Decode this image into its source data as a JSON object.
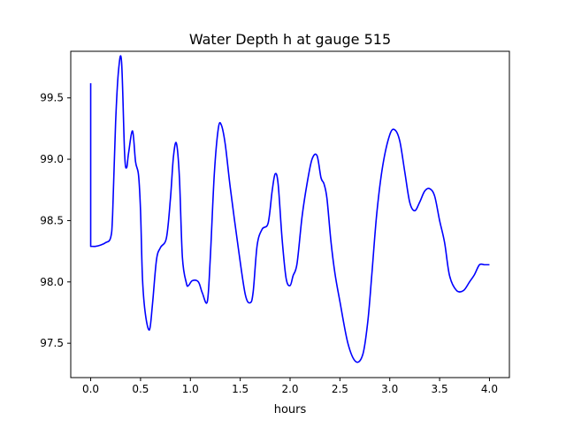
{
  "chart_data": {
    "type": "line",
    "title": "Water Depth h at gauge 515",
    "xlabel": "hours",
    "ylabel": "",
    "xlim": [
      -0.2,
      4.2
    ],
    "ylim": [
      97.22,
      99.88
    ],
    "xticks": [
      0.0,
      0.5,
      1.0,
      1.5,
      2.0,
      2.5,
      3.0,
      3.5,
      4.0
    ],
    "xtick_labels": [
      "0.0",
      "0.5",
      "1.0",
      "1.5",
      "2.0",
      "2.5",
      "3.0",
      "3.5",
      "4.0"
    ],
    "yticks": [
      97.5,
      98.0,
      98.5,
      99.0,
      99.5
    ],
    "ytick_labels": [
      "97.5",
      "98.0",
      "98.5",
      "99.0",
      "99.5"
    ],
    "grid": false,
    "series": [
      {
        "color": "#0000ff",
        "x": [
          0.0,
          0.0,
          0.05,
          0.1,
          0.15,
          0.2,
          0.22,
          0.25,
          0.28,
          0.31,
          0.34,
          0.36,
          0.38,
          0.42,
          0.45,
          0.48,
          0.5,
          0.52,
          0.55,
          0.59,
          0.62,
          0.66,
          0.7,
          0.76,
          0.8,
          0.83,
          0.86,
          0.89,
          0.92,
          0.96,
          0.98,
          1.02,
          1.08,
          1.12,
          1.17,
          1.2,
          1.24,
          1.28,
          1.31,
          1.35,
          1.4,
          1.48,
          1.55,
          1.6,
          1.63,
          1.67,
          1.72,
          1.78,
          1.82,
          1.85,
          1.88,
          1.92,
          1.96,
          2.0,
          2.03,
          2.07,
          2.12,
          2.17,
          2.22,
          2.27,
          2.31,
          2.34,
          2.37,
          2.41,
          2.45,
          2.5,
          2.58,
          2.66,
          2.73,
          2.78,
          2.82,
          2.87,
          2.93,
          3.0,
          3.05,
          3.1,
          3.15,
          3.2,
          3.25,
          3.3,
          3.35,
          3.4,
          3.45,
          3.5,
          3.55,
          3.6,
          3.67,
          3.74,
          3.8,
          3.85,
          3.9,
          3.95,
          4.0
        ],
        "y": [
          99.62,
          98.29,
          98.29,
          98.3,
          98.32,
          98.36,
          98.55,
          99.3,
          99.73,
          99.79,
          99.05,
          98.93,
          99.05,
          99.23,
          98.98,
          98.87,
          98.58,
          98.02,
          97.73,
          97.61,
          97.82,
          98.18,
          98.28,
          98.36,
          98.68,
          99.02,
          99.13,
          98.85,
          98.2,
          97.99,
          97.97,
          98.01,
          98.0,
          97.91,
          97.84,
          98.2,
          98.88,
          99.25,
          99.28,
          99.12,
          98.77,
          98.28,
          97.9,
          97.83,
          97.92,
          98.3,
          98.43,
          98.48,
          98.74,
          98.88,
          98.8,
          98.35,
          98.03,
          97.97,
          98.05,
          98.15,
          98.53,
          98.8,
          99.0,
          99.03,
          98.85,
          98.8,
          98.68,
          98.33,
          98.07,
          97.84,
          97.5,
          97.35,
          97.41,
          97.68,
          98.06,
          98.56,
          98.95,
          99.2,
          99.24,
          99.15,
          98.9,
          98.65,
          98.58,
          98.65,
          98.74,
          98.76,
          98.7,
          98.5,
          98.32,
          98.05,
          97.93,
          97.93,
          98.0,
          98.06,
          98.14,
          98.14,
          98.14
        ]
      }
    ]
  }
}
